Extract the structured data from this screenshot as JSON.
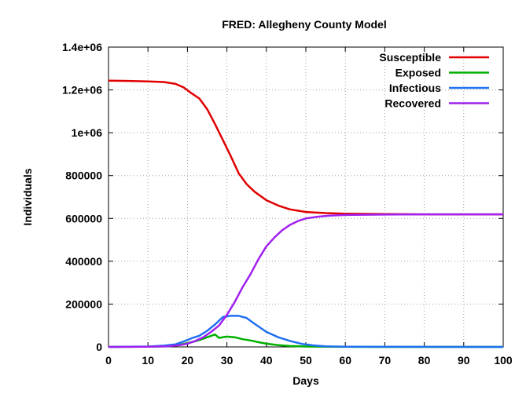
{
  "chart_data": {
    "type": "line",
    "title": "FRED: Allegheny County Model",
    "xlabel": "Days",
    "ylabel": "Individuals",
    "xlim": [
      0,
      100
    ],
    "ylim": [
      0,
      1400000
    ],
    "xticks": [
      0,
      10,
      20,
      30,
      40,
      50,
      60,
      70,
      80,
      90,
      100
    ],
    "xtick_labels": [
      "0",
      "10",
      "20",
      "30",
      "40",
      "50",
      "60",
      "70",
      "80",
      "90",
      "100"
    ],
    "yticks": [
      0,
      200000,
      400000,
      600000,
      800000,
      1000000,
      1200000,
      1400000
    ],
    "ytick_labels": [
      "0",
      "200000",
      "400000",
      "600000",
      "800000",
      "1e+06",
      "1.2e+06",
      "1.4e+06"
    ],
    "grid": true,
    "legend_position": "top-right",
    "series": [
      {
        "name": "Susceptible",
        "color": "#e00000",
        "points": [
          [
            0,
            1243000
          ],
          [
            5,
            1242000
          ],
          [
            10,
            1240000
          ],
          [
            14,
            1237000
          ],
          [
            17,
            1228000
          ],
          [
            19,
            1212000
          ],
          [
            21,
            1185000
          ],
          [
            23,
            1160000
          ],
          [
            25,
            1110000
          ],
          [
            27,
            1040000
          ],
          [
            29,
            965000
          ],
          [
            31,
            890000
          ],
          [
            33,
            810000
          ],
          [
            35,
            760000
          ],
          [
            37,
            725000
          ],
          [
            40,
            685000
          ],
          [
            43,
            660000
          ],
          [
            46,
            642000
          ],
          [
            50,
            630000
          ],
          [
            55,
            625000
          ],
          [
            60,
            622000
          ],
          [
            70,
            620000
          ],
          [
            80,
            619000
          ],
          [
            90,
            619000
          ],
          [
            100,
            619000
          ]
        ]
      },
      {
        "name": "Exposed",
        "color": "#00b000",
        "points": [
          [
            0,
            0
          ],
          [
            10,
            1000
          ],
          [
            15,
            3000
          ],
          [
            18,
            10000
          ],
          [
            21,
            22000
          ],
          [
            23,
            32000
          ],
          [
            25,
            45000
          ],
          [
            27,
            58000
          ],
          [
            28,
            42000
          ],
          [
            30,
            48000
          ],
          [
            32,
            45000
          ],
          [
            34,
            36000
          ],
          [
            36,
            30000
          ],
          [
            38,
            22000
          ],
          [
            40,
            15000
          ],
          [
            43,
            8000
          ],
          [
            46,
            4000
          ],
          [
            50,
            2000
          ],
          [
            55,
            800
          ],
          [
            60,
            300
          ],
          [
            70,
            0
          ],
          [
            100,
            0
          ]
        ]
      },
      {
        "name": "Infectious",
        "color": "#2070f0",
        "points": [
          [
            0,
            0
          ],
          [
            10,
            2000
          ],
          [
            14,
            6000
          ],
          [
            17,
            12000
          ],
          [
            19,
            25000
          ],
          [
            21,
            40000
          ],
          [
            23,
            52000
          ],
          [
            25,
            75000
          ],
          [
            27,
            105000
          ],
          [
            29,
            140000
          ],
          [
            31,
            145000
          ],
          [
            33,
            145000
          ],
          [
            35,
            135000
          ],
          [
            37,
            108000
          ],
          [
            40,
            70000
          ],
          [
            43,
            45000
          ],
          [
            46,
            28000
          ],
          [
            49,
            14000
          ],
          [
            52,
            7000
          ],
          [
            55,
            3000
          ],
          [
            60,
            1000
          ],
          [
            70,
            200
          ],
          [
            100,
            0
          ]
        ]
      },
      {
        "name": "Recovered",
        "color": "#a020f0",
        "points": [
          [
            0,
            0
          ],
          [
            10,
            1000
          ],
          [
            15,
            3000
          ],
          [
            18,
            8000
          ],
          [
            20,
            15000
          ],
          [
            22,
            28000
          ],
          [
            24,
            45000
          ],
          [
            26,
            70000
          ],
          [
            28,
            100000
          ],
          [
            30,
            150000
          ],
          [
            32,
            210000
          ],
          [
            34,
            280000
          ],
          [
            36,
            340000
          ],
          [
            38,
            410000
          ],
          [
            40,
            470000
          ],
          [
            42,
            510000
          ],
          [
            44,
            545000
          ],
          [
            46,
            570000
          ],
          [
            48,
            588000
          ],
          [
            50,
            600000
          ],
          [
            53,
            608000
          ],
          [
            56,
            613000
          ],
          [
            60,
            616000
          ],
          [
            70,
            618000
          ],
          [
            80,
            619000
          ],
          [
            90,
            619000
          ],
          [
            100,
            619000
          ]
        ]
      }
    ]
  }
}
